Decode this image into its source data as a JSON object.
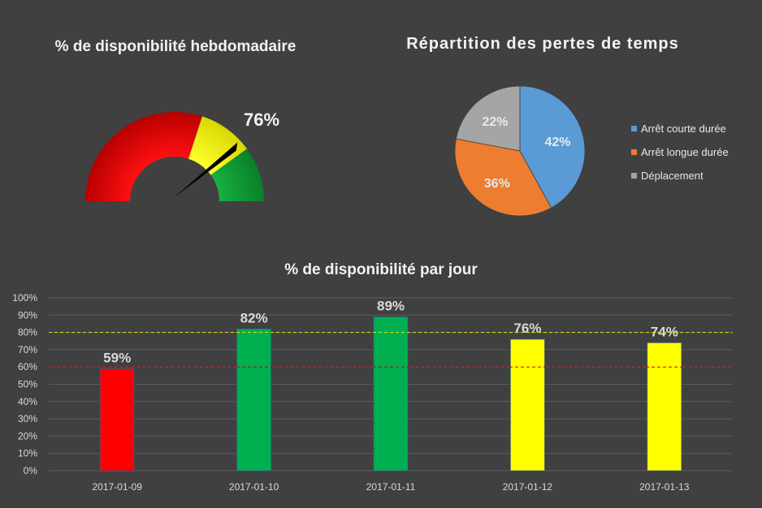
{
  "chart_data": [
    {
      "type": "gauge",
      "title": "% de disponibilité hebdomadaire",
      "value": 76,
      "value_label": "76%",
      "range": [
        0,
        100
      ],
      "zones": [
        {
          "name": "red",
          "from": 0,
          "to": 60,
          "color": "#e60000"
        },
        {
          "name": "yellow",
          "from": 60,
          "to": 80,
          "color": "#f2f200"
        },
        {
          "name": "green",
          "from": 80,
          "to": 100,
          "color": "#0fa038"
        }
      ]
    },
    {
      "type": "pie",
      "title": "Répartition des pertes de temps",
      "legend_position": "right",
      "series": [
        {
          "name": "Arrêt courte durée",
          "value": 42,
          "label": "42%",
          "color": "#5b9bd5"
        },
        {
          "name": "Arrêt longue durée",
          "value": 36,
          "label": "36%",
          "color": "#ed7d31"
        },
        {
          "name": "Déplacement",
          "value": 22,
          "label": "22%",
          "color": "#a5a5a5"
        }
      ]
    },
    {
      "type": "bar",
      "title": "% de disponibilité par jour",
      "categories": [
        "2017-01-09",
        "2017-01-10",
        "2017-01-11",
        "2017-01-12",
        "2017-01-13"
      ],
      "values": [
        59,
        82,
        89,
        76,
        74
      ],
      "data_labels": [
        "59%",
        "82%",
        "89%",
        "76%",
        "74%"
      ],
      "bar_colors": [
        "#ff0000",
        "#00b050",
        "#00b050",
        "#ffff00",
        "#ffff00"
      ],
      "ylim": [
        0,
        100
      ],
      "yticks": [
        "0%",
        "10%",
        "20%",
        "30%",
        "40%",
        "50%",
        "60%",
        "70%",
        "80%",
        "90%",
        "100%"
      ],
      "grid": true,
      "reference_lines": [
        {
          "value": 80,
          "color": "#e6e600",
          "style": "dashed"
        },
        {
          "value": 60,
          "color": "#cc0000",
          "style": "dashed"
        }
      ]
    }
  ]
}
